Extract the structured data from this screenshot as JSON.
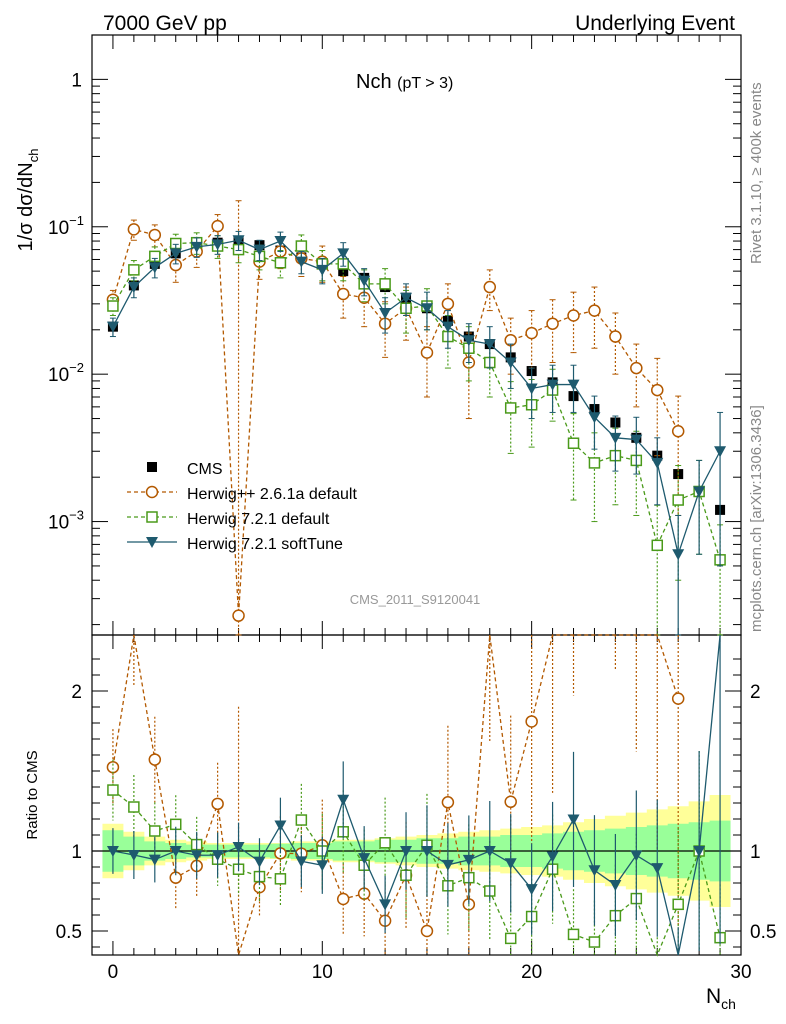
{
  "header": {
    "left": "7000 GeV pp",
    "right": "Underlying Event"
  },
  "side": {
    "rivet": "Rivet 3.1.10, ≥ 400k events",
    "mcplots": "mcplots.cern.ch [arXiv:1306.3436]"
  },
  "chart_data": {
    "type": "scatter",
    "title": "Nch",
    "title_sub": "(pT >  3)",
    "watermark": "CMS_2011_S9120041",
    "xlabel_main": "N",
    "xlabel_sub": "ch",
    "ylabel": "1/σ dσ/dN",
    "ylabel_sub": "ch",
    "ratio_ylabel": "Ratio to CMS",
    "xlim": [
      -1,
      30
    ],
    "ylim": [
      0.00017,
      2.0
    ],
    "log_y": true,
    "ratio_ylim": [
      0.35,
      2.35
    ],
    "x_ticks": [
      "0",
      "10",
      "20",
      "30"
    ],
    "x_tick_values": [
      0,
      10,
      20,
      30
    ],
    "y_ticks": [
      {
        "value": 1,
        "base": "1",
        "exp": ""
      },
      {
        "value": 0.1,
        "base": "10",
        "exp": "−1"
      },
      {
        "value": 0.01,
        "base": "10",
        "exp": "−2"
      },
      {
        "value": 0.001,
        "base": "10",
        "exp": "−3"
      }
    ],
    "ratio_ticks": [
      {
        "value": 2,
        "label": "2"
      },
      {
        "value": 1,
        "label": "1"
      },
      {
        "value": 0.5,
        "label": "0.5"
      }
    ],
    "legend_position": "lower-left",
    "x": [
      0,
      1,
      2,
      3,
      4,
      5,
      6,
      7,
      8,
      9,
      10,
      11,
      12,
      13,
      14,
      15,
      16,
      17,
      18,
      19,
      20,
      21,
      22,
      23,
      24,
      25,
      26,
      27,
      28,
      29
    ],
    "series": [
      {
        "name": "CMS",
        "color": "#000000",
        "marker": "square-filled",
        "values": [
          0.021,
          0.04,
          0.056,
          0.066,
          0.075,
          0.078,
          0.079,
          0.075,
          0.069,
          0.062,
          0.056,
          0.05,
          0.045,
          0.039,
          0.033,
          0.028,
          0.023,
          0.018,
          0.016,
          0.013,
          0.0105,
          0.0088,
          0.0071,
          0.0058,
          0.0047,
          0.0037,
          0.0028,
          0.0021,
          0.0016,
          0.0012
        ]
      },
      {
        "name": "Herwig++ 2.6.1a default",
        "color": "#b35900",
        "marker": "circle-open",
        "line": "dashed",
        "values": [
          0.032,
          0.096,
          0.088,
          0.055,
          0.068,
          0.101,
          0.00023,
          0.058,
          0.068,
          0.061,
          0.058,
          0.035,
          0.033,
          0.022,
          0.028,
          0.014,
          0.03,
          0.012,
          0.039,
          0.017,
          0.019,
          0.022,
          0.025,
          0.027,
          0.018,
          0.011,
          0.0078,
          0.0041,
          null,
          null
        ],
        "err": [
          0.005,
          0.015,
          0.015,
          0.013,
          0.015,
          0.02,
          0.15,
          0.014,
          0.016,
          0.015,
          0.016,
          0.011,
          0.012,
          0.009,
          0.011,
          0.007,
          0.011,
          0.007,
          0.012,
          0.007,
          0.008,
          0.01,
          0.011,
          0.012,
          0.008,
          0.005,
          0.005,
          0.003,
          0,
          0
        ]
      },
      {
        "name": "Herwig 7.2.1 default",
        "color": "#4a9a1a",
        "marker": "square-open",
        "line": "dashed",
        "values": [
          0.029,
          0.051,
          0.063,
          0.077,
          0.078,
          0.074,
          0.07,
          0.063,
          0.057,
          0.074,
          0.056,
          0.056,
          0.041,
          0.041,
          0.028,
          0.029,
          0.018,
          0.015,
          0.012,
          0.0059,
          0.0062,
          0.0078,
          0.0034,
          0.0025,
          0.0028,
          0.0026,
          0.00069,
          0.0014,
          0.0016,
          0.00055
        ],
        "err": [
          0.004,
          0.008,
          0.01,
          0.012,
          0.013,
          0.013,
          0.013,
          0.012,
          0.012,
          0.014,
          0.013,
          0.013,
          0.01,
          0.011,
          0.009,
          0.009,
          0.007,
          0.006,
          0.005,
          0.003,
          0.003,
          0.003,
          0.002,
          0.0015,
          0.0015,
          0.0015,
          0.0006,
          0.001,
          0.001,
          0.0004
        ]
      },
      {
        "name": "Herwig 7.2.1 softTune",
        "color": "#1e5a6e",
        "marker": "triangle-down-filled",
        "line": "solid",
        "values": [
          0.021,
          0.039,
          0.053,
          0.066,
          0.073,
          0.076,
          0.081,
          0.07,
          0.08,
          0.058,
          0.051,
          0.066,
          0.043,
          0.026,
          0.033,
          0.028,
          0.021,
          0.017,
          0.016,
          0.012,
          0.008,
          0.0085,
          0.0085,
          0.0051,
          0.0037,
          0.0036,
          0.0025,
          0.0006,
          0.0016,
          0.003
        ],
        "err": [
          0.003,
          0.006,
          0.008,
          0.01,
          0.011,
          0.011,
          0.012,
          0.011,
          0.012,
          0.01,
          0.01,
          0.012,
          0.009,
          0.007,
          0.008,
          0.008,
          0.006,
          0.005,
          0.005,
          0.004,
          0.003,
          0.003,
          0.003,
          0.002,
          0.0015,
          0.0015,
          0.0012,
          0.0005,
          0.001,
          0.0025
        ]
      }
    ],
    "cms_band_inner": [
      0.13,
      0.09,
      0.06,
      0.05,
      0.04,
      0.04,
      0.04,
      0.04,
      0.045,
      0.05,
      0.05,
      0.06,
      0.06,
      0.07,
      0.07,
      0.08,
      0.08,
      0.09,
      0.09,
      0.1,
      0.1,
      0.11,
      0.12,
      0.13,
      0.14,
      0.15,
      0.16,
      0.17,
      0.18,
      0.19
    ],
    "cms_band_outer": [
      0.17,
      0.12,
      0.09,
      0.07,
      0.06,
      0.05,
      0.05,
      0.05,
      0.05,
      0.06,
      0.06,
      0.07,
      0.07,
      0.08,
      0.09,
      0.1,
      0.11,
      0.12,
      0.13,
      0.14,
      0.15,
      0.16,
      0.18,
      0.2,
      0.22,
      0.24,
      0.26,
      0.28,
      0.31,
      0.35
    ]
  }
}
